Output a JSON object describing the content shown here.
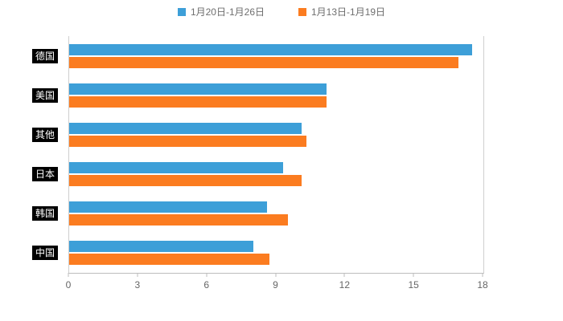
{
  "legend": {
    "items": [
      {
        "label": "1月20日-1月26日",
        "color": "#3D9FD8"
      },
      {
        "label": "1月13日-1月19日",
        "color": "#FB7C20"
      }
    ]
  },
  "chart_data": {
    "type": "bar",
    "orientation": "horizontal",
    "title": "",
    "xlabel": "",
    "ylabel": "",
    "categories": [
      "德国",
      "美国",
      "其他",
      "日本",
      "韩国",
      "中国"
    ],
    "series": [
      {
        "name": "1月20日-1月26日",
        "color": "#3D9FD8",
        "values": [
          17.5,
          11.2,
          10.1,
          9.3,
          8.6,
          8.0
        ]
      },
      {
        "name": "1月13日-1月19日",
        "color": "#FB7C20",
        "values": [
          16.9,
          11.2,
          10.3,
          10.1,
          9.5,
          8.7
        ]
      }
    ],
    "xlim": [
      0,
      18
    ],
    "xticks": [
      0,
      3,
      6,
      9,
      12,
      15,
      18
    ],
    "grid": false,
    "legend_position": "top",
    "category_label_style": "white-on-black-chip"
  }
}
